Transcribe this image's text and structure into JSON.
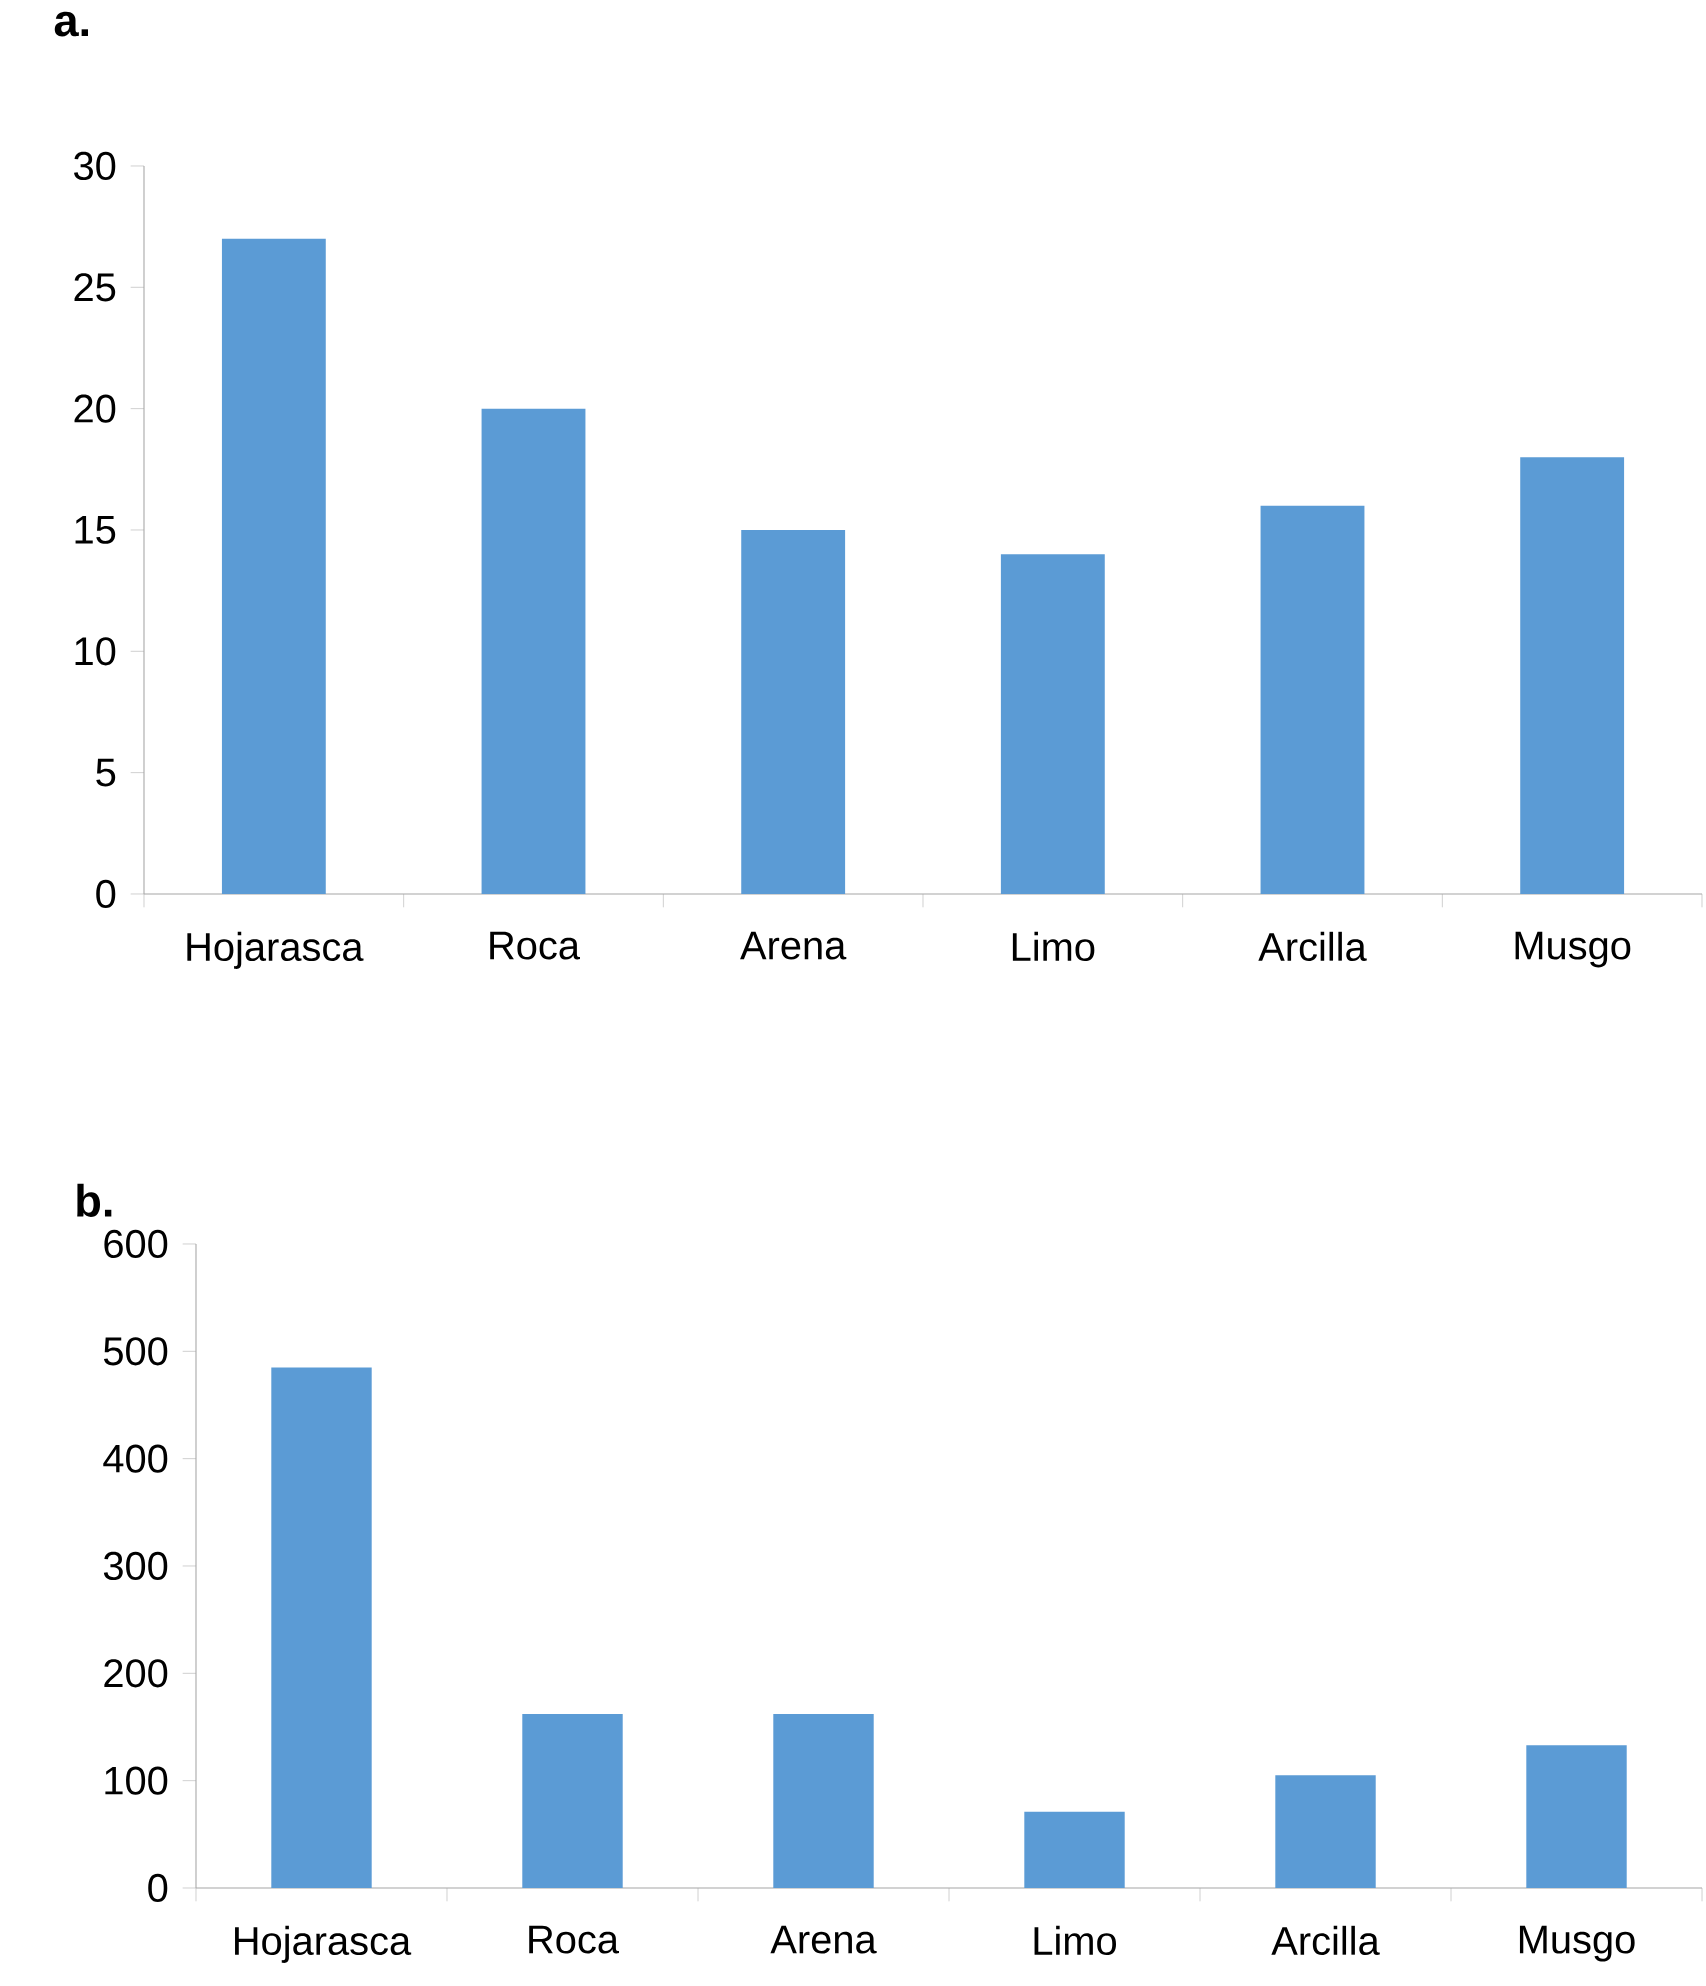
{
  "chart_data": [
    {
      "type": "bar",
      "title": "**a.**",
      "categories": [
        "Hojarasca",
        "Roca",
        "Arena",
        "Limo",
        "Arcilla",
        "Musgo"
      ],
      "values": [
        27,
        20,
        15,
        14,
        16,
        18
      ],
      "color": "#5b9bd5",
      "ylim": [
        0,
        30
      ],
      "yticks": [
        0,
        5,
        10,
        15,
        20,
        25,
        30
      ]
    },
    {
      "type": "bar",
      "title": "**b.**",
      "categories": [
        "Hojarasca",
        "Roca",
        "Arena",
        "Limo",
        "Arcilla",
        "Musgo"
      ],
      "values": [
        485,
        162,
        162,
        71,
        105,
        133
      ],
      "color": "#5b9bd5",
      "ylim": [
        0,
        600
      ],
      "yticks": [
        0,
        100,
        200,
        300,
        400,
        500,
        600
      ]
    }
  ]
}
